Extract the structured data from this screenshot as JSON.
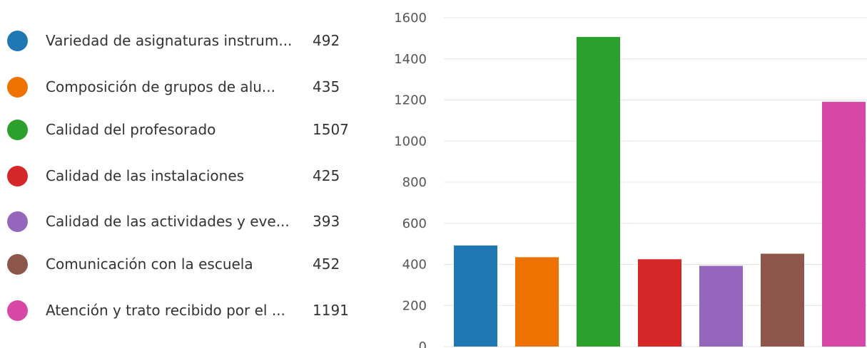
{
  "chart_data": {
    "type": "bar",
    "categories": [
      "Variedad de asignaturas instrum...",
      "Composición de grupos de alu...",
      "Calidad del profesorado",
      "Calidad de las instalaciones",
      "Calidad de las actividades y eve...",
      "Comunicación con la escuela",
      "Atención y trato recibido por el ..."
    ],
    "values": [
      492,
      435,
      1507,
      425,
      393,
      452,
      1191
    ],
    "colors": [
      "#1f77b4",
      "#ee7200",
      "#2ca02c",
      "#d62728",
      "#9467bd",
      "#8c564b",
      "#d647a6"
    ],
    "ylim": [
      0,
      1600
    ],
    "yticks": [
      0,
      200,
      400,
      600,
      800,
      1000,
      1200,
      1400,
      1600
    ],
    "grid": true,
    "legend_position": "left",
    "title": "",
    "xlabel": "",
    "ylabel": ""
  }
}
